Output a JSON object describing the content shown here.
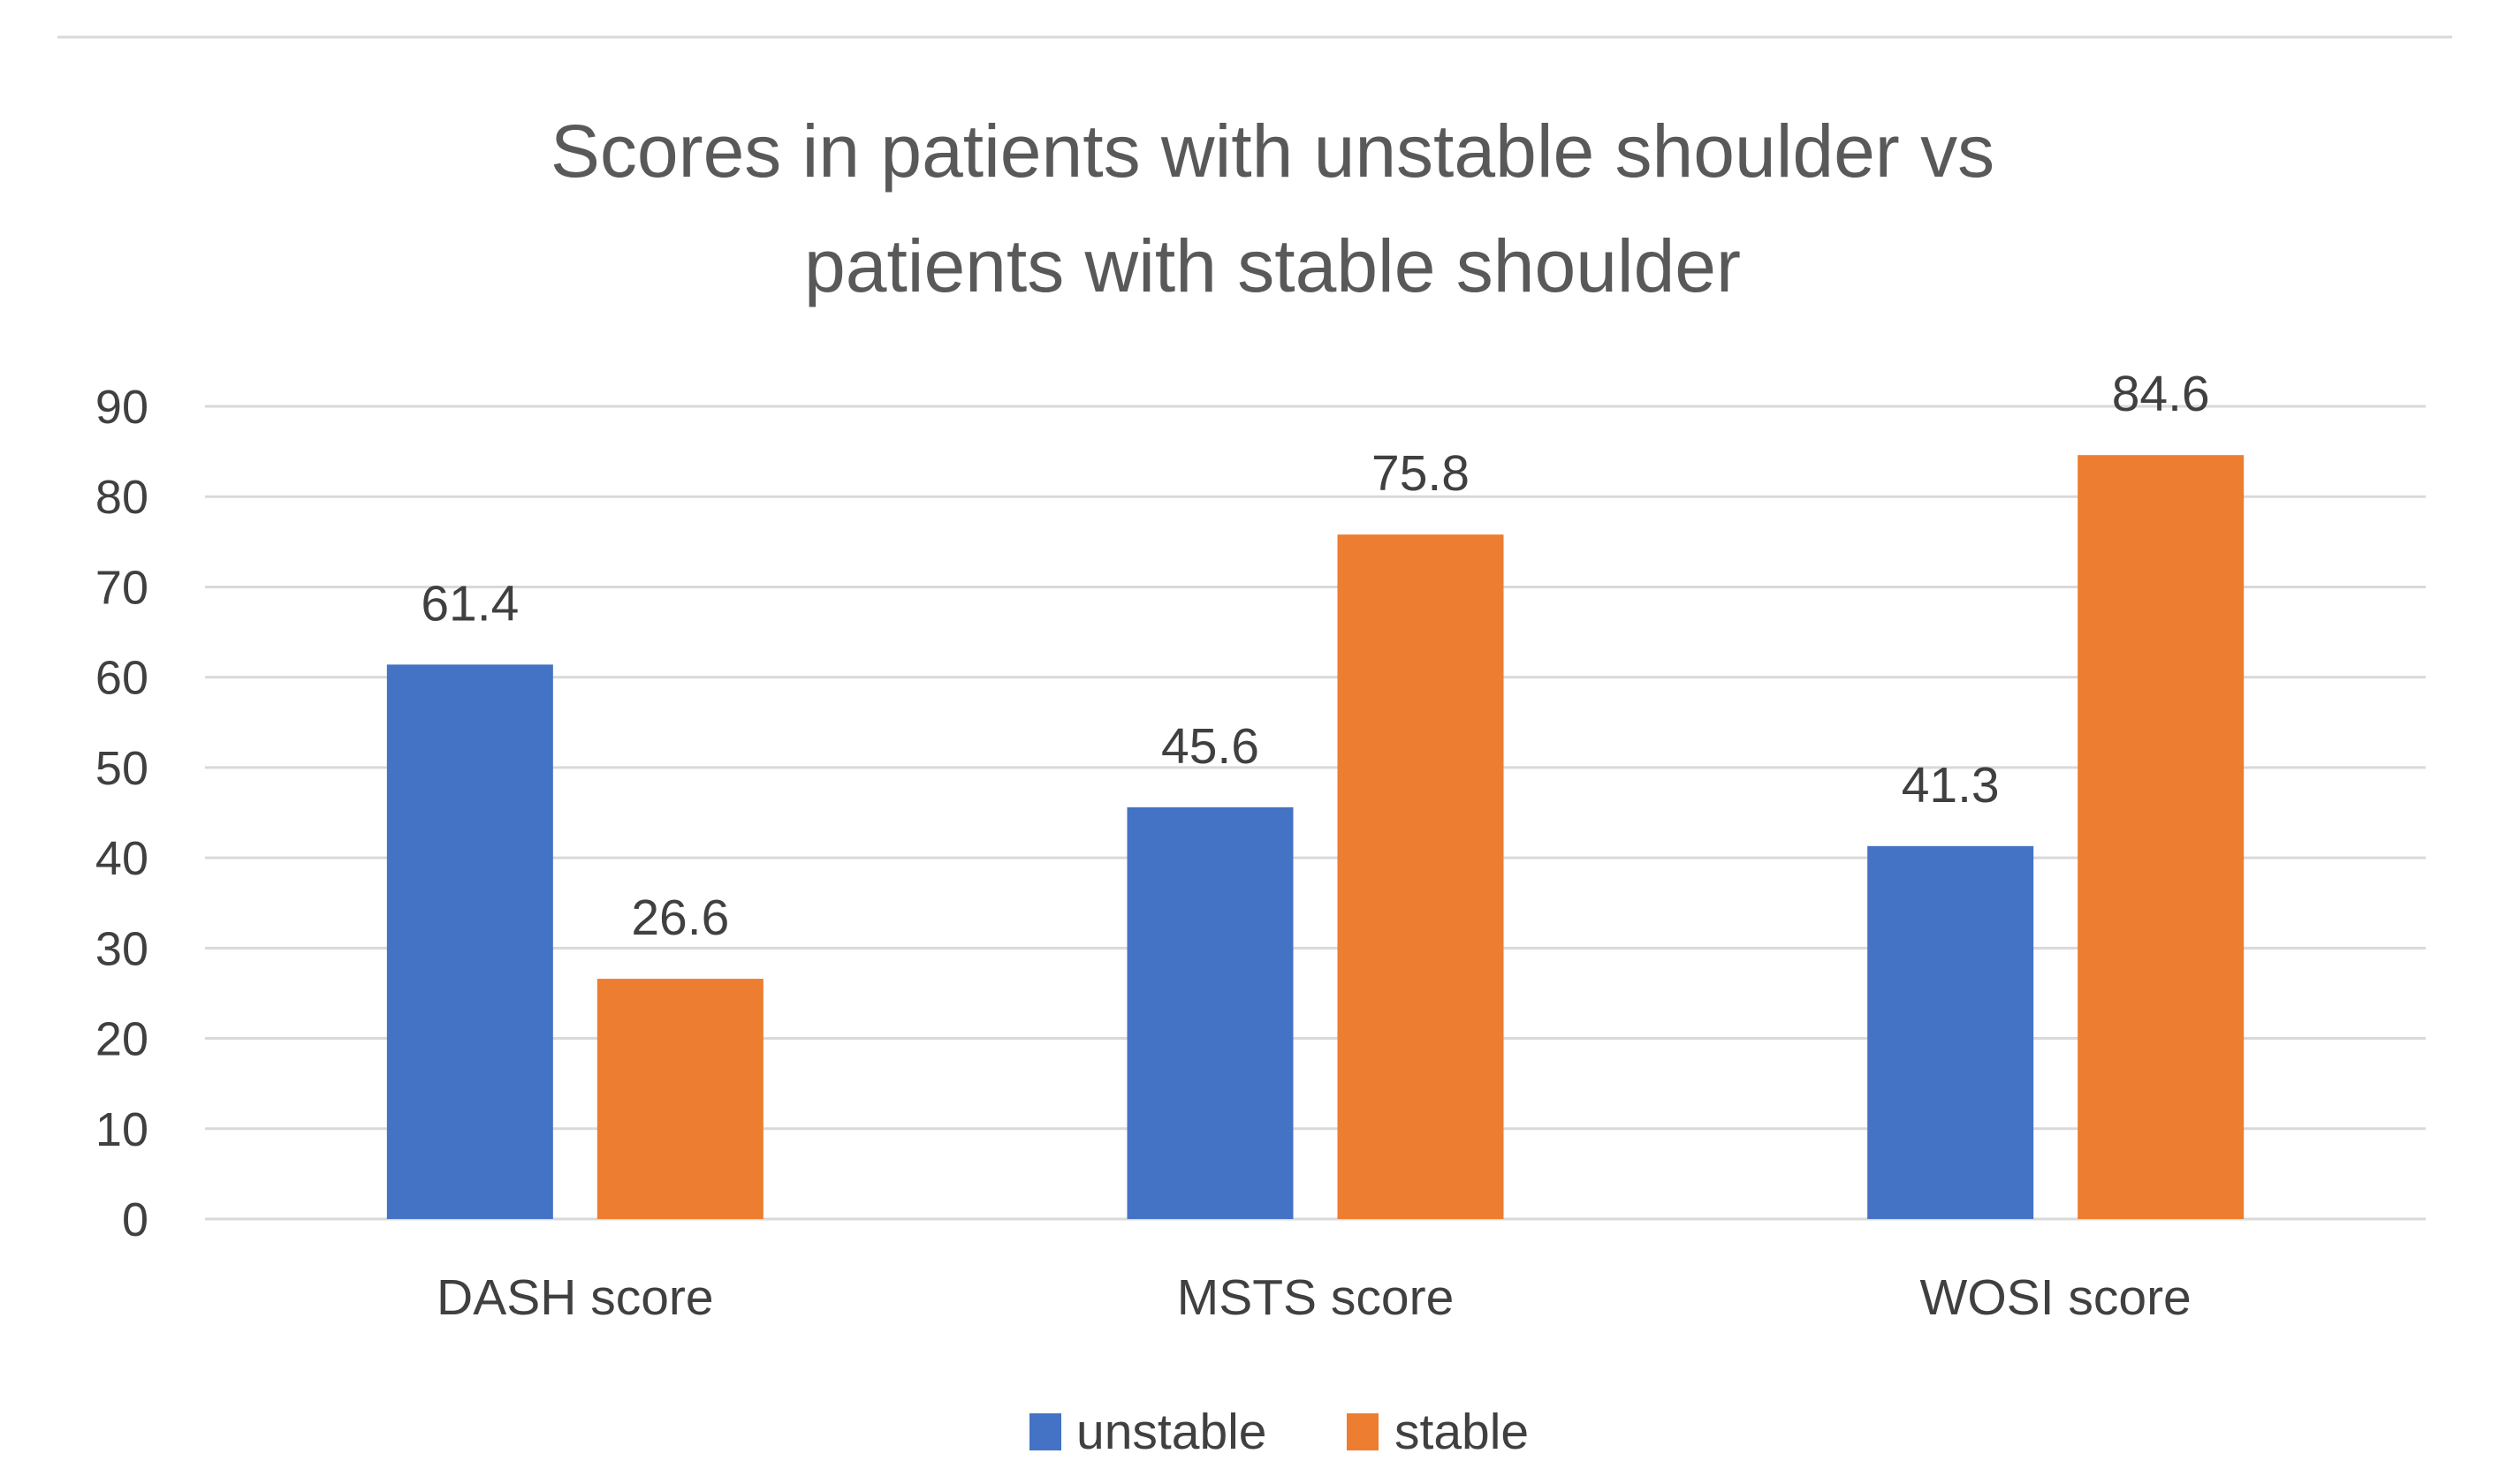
{
  "chart_data": {
    "type": "bar",
    "title_lines": [
      "Scores in patients with unstable shoulder vs",
      "patients with stable shoulder"
    ],
    "categories": [
      "DASH score",
      "MSTS score",
      "WOSI score"
    ],
    "series": [
      {
        "name": "unstable",
        "color": "#4472C4",
        "values": [
          61.4,
          45.6,
          41.3
        ],
        "labels": [
          "61.4",
          "45.6",
          "41.3"
        ]
      },
      {
        "name": "stable",
        "color": "#ED7D31",
        "values": [
          26.6,
          75.8,
          84.6
        ],
        "labels": [
          "26.6",
          "75.8",
          "84.6"
        ]
      }
    ],
    "ylim": [
      0,
      90
    ],
    "yticks": [
      "0",
      "10",
      "20",
      "30",
      "40",
      "50",
      "60",
      "70",
      "80",
      "90"
    ],
    "grid": true,
    "legend_position": "bottom",
    "xlabel": "",
    "ylabel": ""
  }
}
